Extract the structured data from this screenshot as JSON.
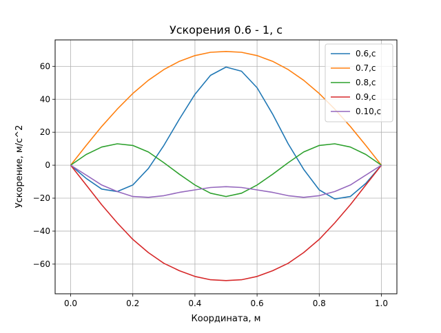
{
  "chart_data": {
    "type": "line",
    "title": "Ускорения 0.6 - 1, с",
    "xlabel": "Координата, м",
    "ylabel": "Ускорение,  м/с^2",
    "xlim": [
      -0.05,
      1.05
    ],
    "ylim": [
      -78,
      76
    ],
    "xticks": [
      0.0,
      0.2,
      0.4,
      0.6,
      0.8,
      1.0
    ],
    "xtick_labels": [
      "0.0",
      "0.2",
      "0.4",
      "0.6",
      "0.8",
      "1.0"
    ],
    "yticks": [
      -60,
      -40,
      -20,
      0,
      20,
      40,
      60
    ],
    "ytick_labels": [
      "−60",
      "−40",
      "−20",
      "0",
      "20",
      "40",
      "60"
    ],
    "grid": true,
    "legend_position": "top-right",
    "x": [
      0.0,
      0.05,
      0.1,
      0.15,
      0.2,
      0.25,
      0.3,
      0.35,
      0.4,
      0.45,
      0.5,
      0.55,
      0.6,
      0.65,
      0.7,
      0.75,
      0.8,
      0.85,
      0.9,
      0.95,
      1.0
    ],
    "series": [
      {
        "name": "0.6,с",
        "color": "#1f77b4",
        "values": [
          0,
          -8,
          -14.5,
          -16,
          -12,
          -2,
          12,
          28,
          43,
          54.5,
          59.5,
          57,
          47,
          31,
          13,
          -2.5,
          -15,
          -20.5,
          -19,
          -11,
          0
        ]
      },
      {
        "name": "0.7,с",
        "color": "#ff7f0e",
        "values": [
          0,
          12,
          23.5,
          34,
          43.5,
          51.5,
          58,
          63,
          66.5,
          68.5,
          69,
          68.5,
          66.5,
          63,
          58,
          51.5,
          43.5,
          34,
          23.5,
          12,
          0
        ]
      },
      {
        "name": "0.8,с",
        "color": "#2ca02c",
        "values": [
          0,
          6.5,
          11,
          13,
          12,
          8,
          1.5,
          -5.5,
          -12,
          -17,
          -19,
          -17,
          -12,
          -5.5,
          1.5,
          8,
          12,
          13,
          11,
          6.5,
          0
        ]
      },
      {
        "name": "0.9,с",
        "color": "#d62728",
        "values": [
          0,
          -12,
          -24,
          -35,
          -45,
          -53,
          -59.5,
          -64,
          -67.5,
          -69.5,
          -70,
          -69.5,
          -67.5,
          -64,
          -59.5,
          -53,
          -45,
          -35,
          -24,
          -12,
          0
        ]
      },
      {
        "name": "0.10,с",
        "color": "#9467bd",
        "values": [
          0,
          -6,
          -12,
          -16,
          -19,
          -19.5,
          -18.5,
          -16.5,
          -15,
          -13.5,
          -13,
          -13.5,
          -15,
          -16.5,
          -18.5,
          -19.5,
          -18.5,
          -16,
          -12,
          -6,
          0
        ]
      }
    ]
  }
}
